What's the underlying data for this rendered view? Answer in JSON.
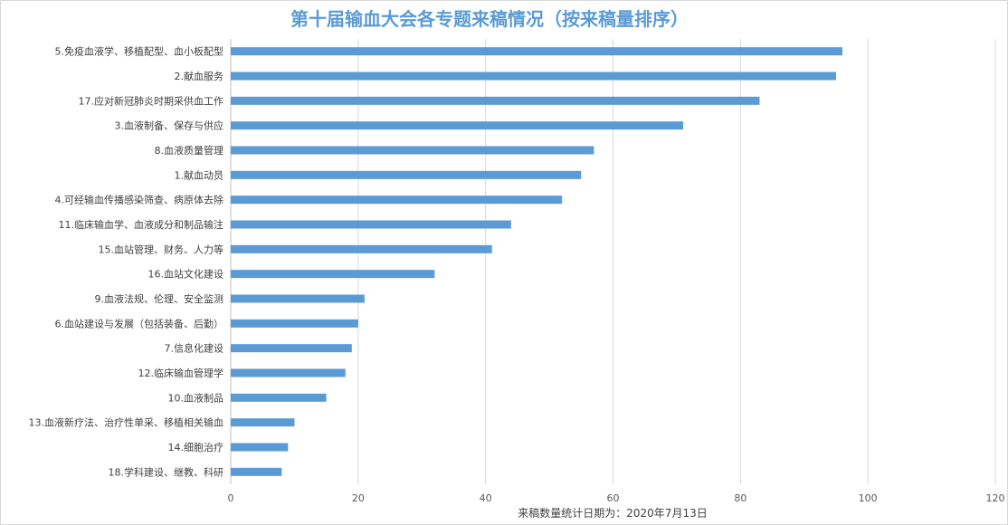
{
  "chart_data": {
    "type": "bar",
    "orientation": "horizontal",
    "title": "第十届输血大会各专题来稿情况（按来稿量排序）",
    "xlabel": "来稿数量统计日期为：2020年7月13日",
    "ylabel": "",
    "xlim": [
      0,
      120
    ],
    "xticks": [
      0,
      20,
      40,
      60,
      80,
      100,
      120
    ],
    "grid": true,
    "legend": "none",
    "bar_color": "#5b9bd5",
    "categories": [
      "5.免疫血液学、移植配型、血小板配型",
      "2.献血服务",
      "17.应对新冠肺炎时期采供血工作",
      "3.血液制备、保存与供应",
      "8.血液质量管理",
      "1.献血动员",
      "4.可经输血传播感染筛查、病原体去除",
      "11.临床输血学、血液成分和制品输注",
      "15.血站管理、财务、人力等",
      "16.血站文化建设",
      "9.血液法规、伦理、安全监测",
      "6.血站建设与发展（包括装备、后勤）",
      "7.信息化建设",
      "12.临床输血管理学",
      "10.血液制品",
      "13.血液新疗法、治疗性单采、移植相关输血",
      "14.细胞治疗",
      "18.学科建设、继教、科研"
    ],
    "values": [
      96,
      95,
      83,
      71,
      57,
      55,
      52,
      44,
      41,
      32,
      21,
      20,
      19,
      18,
      15,
      10,
      9,
      8
    ]
  }
}
